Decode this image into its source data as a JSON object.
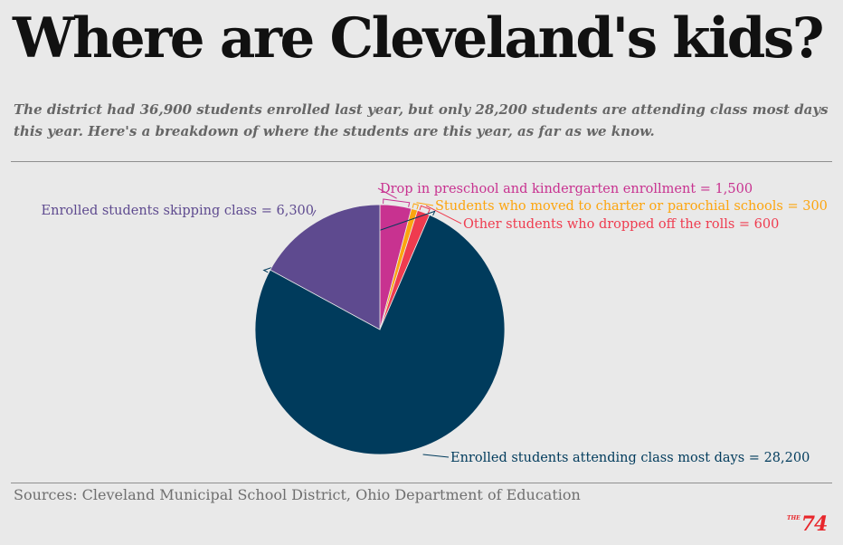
{
  "title": "Where are Cleveland's kids?",
  "subtitle": "The district had 36,900 students enrolled last year, but only 28,200 students are attending class most days this year. Here's a breakdown of where the students are this year, as far as we know.",
  "source": "Sources: Cleveland Municipal School District, Ohio Department of Education",
  "logo": {
    "prefix": "THE",
    "number": "74"
  },
  "chart_data": {
    "type": "pie",
    "title": "",
    "start_angle_deg": 0,
    "direction": "clockwise",
    "legend": "none",
    "slices": [
      {
        "label": "Drop in preschool and kindergarten enrollment",
        "value": 1500,
        "display_label": "Drop in preschool and kindergarten enrollment = 1,500",
        "color": "#c83290"
      },
      {
        "label": "Students who moved to charter or parochial schools",
        "value": 300,
        "display_label": "Students who moved to charter or parochial schools = 300",
        "color": "#fca50f"
      },
      {
        "label": "Other students who dropped off the rolls",
        "value": 600,
        "display_label": "Other students who dropped off the rolls = 600",
        "color": "#ef3b4f"
      },
      {
        "label": "Enrolled students attending class most days",
        "value": 28200,
        "display_label": "Enrolled students attending class most days = 28,200",
        "color": "#003b5c"
      },
      {
        "label": "Enrolled students skipping class",
        "value": 6300,
        "display_label": "Enrolled students skipping class = 6,300",
        "color": "#5e4a8f"
      }
    ]
  }
}
